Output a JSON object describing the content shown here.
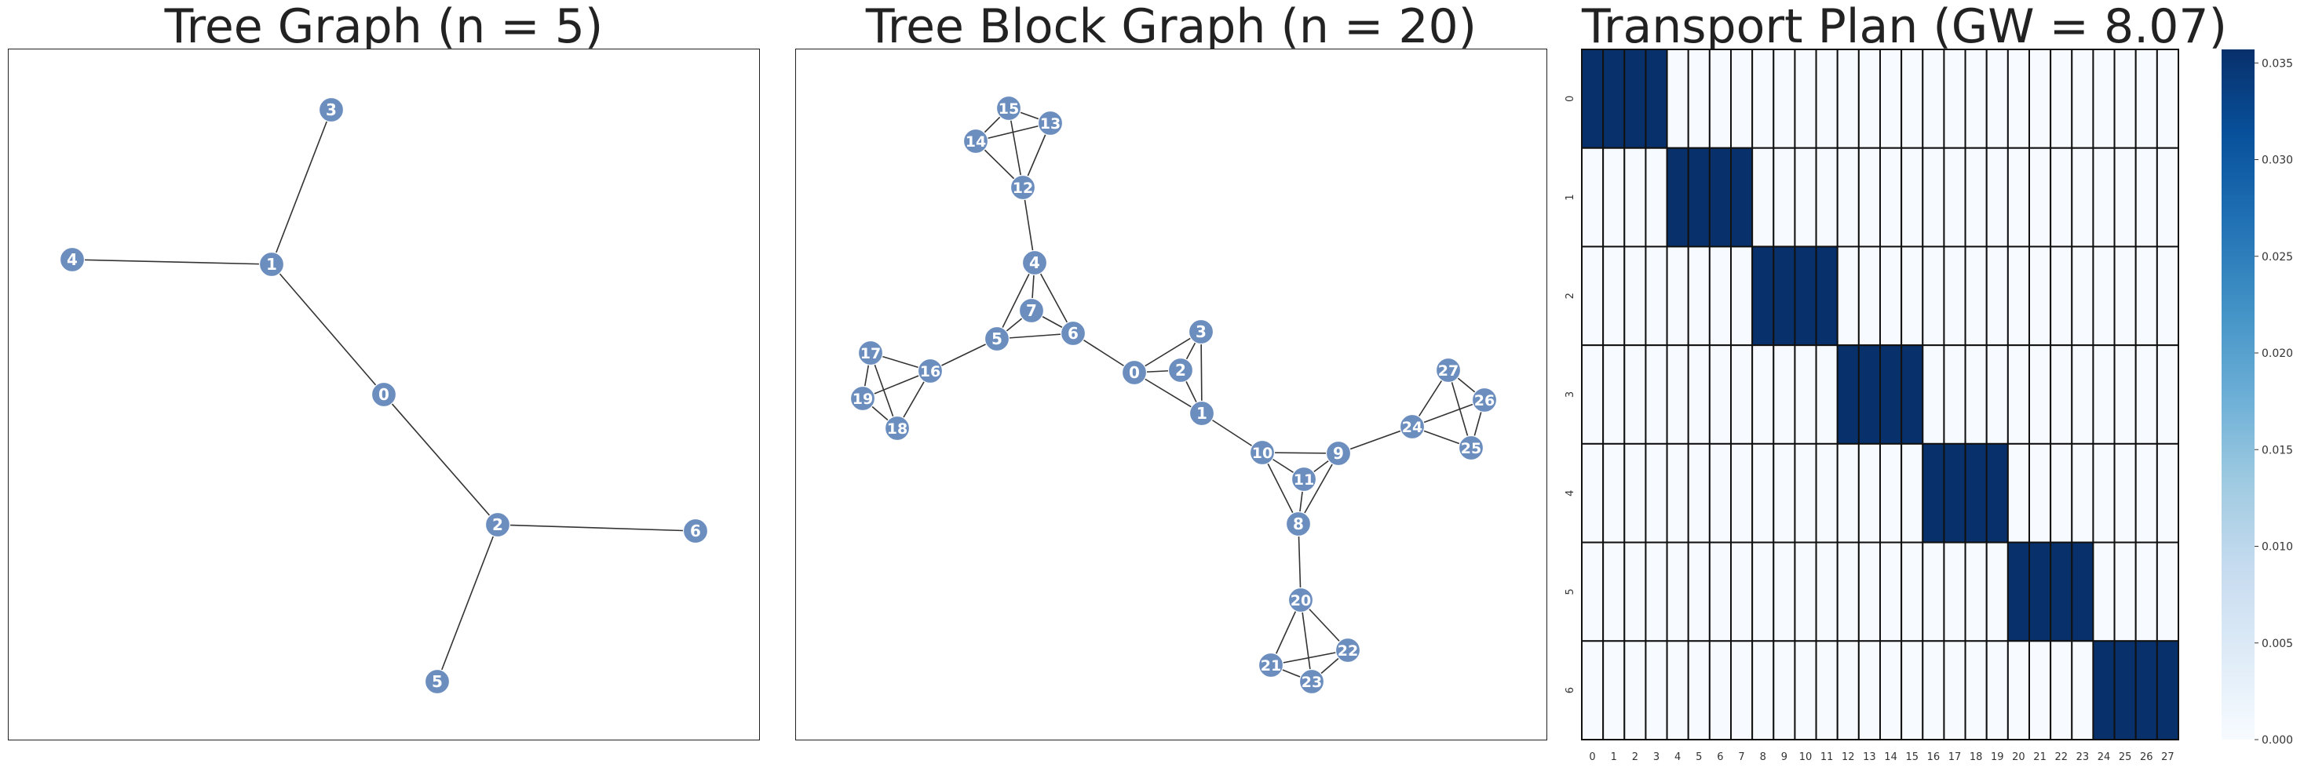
{
  "chart_data": [
    {
      "type": "network",
      "title": "Tree Graph (n = 5)",
      "node_color": "#6c8ebf",
      "nodes": [
        "0",
        "1",
        "2",
        "3",
        "4",
        "5",
        "6"
      ],
      "edges": [
        [
          "1",
          "3"
        ],
        [
          "1",
          "4"
        ],
        [
          "1",
          "0"
        ],
        [
          "0",
          "2"
        ],
        [
          "2",
          "6"
        ],
        [
          "2",
          "5"
        ]
      ]
    },
    {
      "type": "network",
      "title": "Tree Block Graph (n = 20)",
      "node_color": "#6c8ebf",
      "nodes": [
        "0",
        "1",
        "2",
        "3",
        "4",
        "5",
        "6",
        "7",
        "8",
        "9",
        "10",
        "11",
        "12",
        "13",
        "14",
        "15",
        "16",
        "17",
        "18",
        "19",
        "20",
        "21",
        "22",
        "23",
        "24",
        "25",
        "26",
        "27"
      ],
      "edges": [
        [
          "0",
          "1"
        ],
        [
          "0",
          "2"
        ],
        [
          "0",
          "3"
        ],
        [
          "1",
          "2"
        ],
        [
          "1",
          "3"
        ],
        [
          "2",
          "3"
        ],
        [
          "4",
          "5"
        ],
        [
          "4",
          "6"
        ],
        [
          "4",
          "7"
        ],
        [
          "5",
          "6"
        ],
        [
          "5",
          "7"
        ],
        [
          "6",
          "7"
        ],
        [
          "8",
          "9"
        ],
        [
          "8",
          "10"
        ],
        [
          "8",
          "11"
        ],
        [
          "9",
          "10"
        ],
        [
          "9",
          "11"
        ],
        [
          "10",
          "11"
        ],
        [
          "12",
          "13"
        ],
        [
          "12",
          "14"
        ],
        [
          "12",
          "15"
        ],
        [
          "13",
          "14"
        ],
        [
          "13",
          "15"
        ],
        [
          "14",
          "15"
        ],
        [
          "16",
          "17"
        ],
        [
          "16",
          "18"
        ],
        [
          "16",
          "19"
        ],
        [
          "17",
          "18"
        ],
        [
          "17",
          "19"
        ],
        [
          "18",
          "19"
        ],
        [
          "20",
          "21"
        ],
        [
          "20",
          "22"
        ],
        [
          "20",
          "23"
        ],
        [
          "21",
          "22"
        ],
        [
          "21",
          "23"
        ],
        [
          "22",
          "23"
        ],
        [
          "24",
          "25"
        ],
        [
          "24",
          "26"
        ],
        [
          "24",
          "27"
        ],
        [
          "25",
          "26"
        ],
        [
          "25",
          "27"
        ],
        [
          "26",
          "27"
        ],
        [
          "0",
          "6"
        ],
        [
          "1",
          "10"
        ],
        [
          "4",
          "12"
        ],
        [
          "5",
          "16"
        ],
        [
          "8",
          "20"
        ],
        [
          "9",
          "24"
        ]
      ]
    },
    {
      "type": "heatmap",
      "title": "Transport Plan (GW = 8.07)",
      "rows": [
        "0",
        "1",
        "2",
        "3",
        "4",
        "5",
        "6"
      ],
      "columns": [
        "0",
        "1",
        "2",
        "3",
        "4",
        "5",
        "6",
        "7",
        "8",
        "9",
        "10",
        "11",
        "12",
        "13",
        "14",
        "15",
        "16",
        "17",
        "18",
        "19",
        "20",
        "21",
        "22",
        "23",
        "24",
        "25",
        "26",
        "27"
      ],
      "cell_rule": "row i has value 0.0357 in columns 4i..4i+3 and 0 elsewhere",
      "block_value": 0.0357,
      "colormap": "Blues",
      "colorbar_range": [
        0,
        0.0357
      ],
      "colorbar_ticks": [
        "0.000",
        "0.005",
        "0.010",
        "0.015",
        "0.020",
        "0.025",
        "0.030",
        "0.035"
      ],
      "colorbar_tick_values": [
        0,
        0.005,
        0.01,
        0.015,
        0.02,
        0.025,
        0.03,
        0.035
      ]
    }
  ]
}
